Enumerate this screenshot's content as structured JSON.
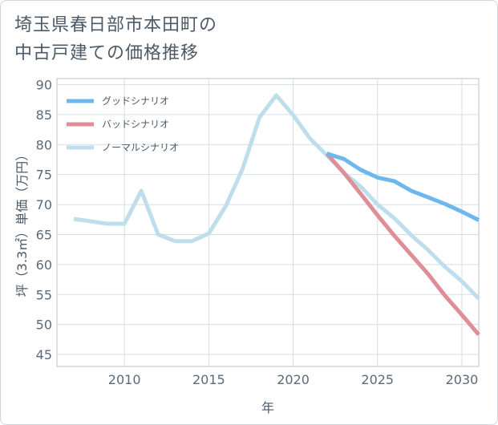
{
  "title": {
    "line1": "埼玉県春日部市本田町の",
    "line2": "中古戸建ての価格推移"
  },
  "chart_data": {
    "type": "line",
    "title": "埼玉県春日部市本田町の中古戸建ての価格推移",
    "xlabel": "年",
    "ylabel": "坪（3.3㎡）単価（万円）",
    "xlim": [
      2006,
      2031
    ],
    "ylim": [
      43,
      91
    ],
    "xticks": [
      2010,
      2015,
      2020,
      2025,
      2030
    ],
    "yticks": [
      45,
      50,
      55,
      60,
      65,
      70,
      75,
      80,
      85,
      90
    ],
    "grid": true,
    "legend_position": "top-left",
    "series": [
      {
        "name": "グッドシナリオ",
        "color": "#6cb8ee",
        "x": [
          2022,
          2023,
          2024,
          2025,
          2026,
          2027,
          2028,
          2029,
          2030,
          2031
        ],
        "values": [
          78.5,
          77.6,
          75.8,
          74.5,
          73.9,
          72.3,
          71.2,
          70.1,
          68.8,
          67.4
        ]
      },
      {
        "name": "バッドシナリオ",
        "color": "#df8e98",
        "x": [
          2022,
          2023,
          2024,
          2025,
          2026,
          2027,
          2028,
          2029,
          2030,
          2031
        ],
        "values": [
          78.5,
          75.3,
          71.8,
          68.2,
          64.8,
          61.6,
          58.4,
          54.8,
          51.6,
          48.3
        ]
      },
      {
        "name": "ノーマルシナリオ",
        "color": "#bfdeeb",
        "x": [
          2007,
          2008,
          2009,
          2010,
          2011,
          2012,
          2013,
          2014,
          2015,
          2016,
          2017,
          2018,
          2019,
          2020,
          2021,
          2022,
          2023,
          2024,
          2025,
          2026,
          2027,
          2028,
          2029,
          2030,
          2031
        ],
        "values": [
          67.6,
          67.2,
          66.8,
          66.8,
          72.3,
          65.0,
          63.9,
          63.9,
          65.2,
          69.7,
          75.9,
          84.5,
          88.2,
          84.9,
          81.0,
          78.2,
          75.3,
          73.0,
          70.0,
          67.7,
          64.9,
          62.4,
          59.6,
          57.2,
          54.3
        ]
      }
    ]
  }
}
